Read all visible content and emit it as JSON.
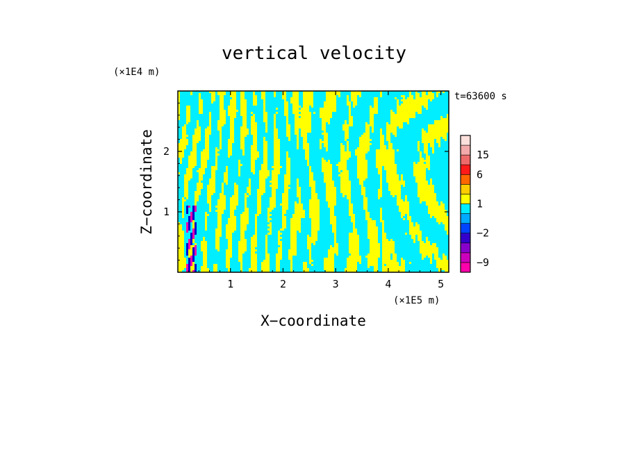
{
  "chart_data": {
    "type": "heatmap",
    "title": "vertical velocity",
    "xlabel": "X−coordinate",
    "ylabel": "Z−coordinate",
    "x_unit": "(×1E5 m)",
    "y_unit": "(×1E4 m)",
    "time_label": "t=63600 s",
    "xlim": [
      0,
      5.15
    ],
    "ylim": [
      0,
      3.0
    ],
    "x_ticks": [
      1,
      2,
      3,
      4,
      5
    ],
    "x_tick_labels": [
      "1",
      "2",
      "3",
      "4",
      "5"
    ],
    "y_ticks": [
      1,
      2
    ],
    "y_tick_labels": [
      "1",
      "2"
    ],
    "field_colors": {
      "positive": "#ffff00",
      "negative": "#00eeff",
      "strong_negative": [
        "#0000cc",
        "#6a00c8",
        "#ff00aa"
      ],
      "strong_positive": [
        "#ff2a1a",
        "#ee6a6a"
      ]
    },
    "colorbar": {
      "levels": [
        -12,
        -9,
        -6,
        -4,
        -2,
        -1,
        0,
        1,
        2,
        4,
        6,
        10,
        15,
        20,
        30
      ],
      "colors": [
        "#ff00aa",
        "#cc00bb",
        "#8800cc",
        "#3300cc",
        "#0044ff",
        "#00aaff",
        "#00eeff",
        "#ffff00",
        "#ffcc00",
        "#ff6600",
        "#ff1a1a",
        "#ee6a6a",
        "#f4aaaa",
        "#fce0dc"
      ],
      "tick_values": [
        15,
        6,
        1,
        -2,
        -9
      ],
      "tick_labels": [
        "15",
        "6",
        "1",
        "−2",
        "−9"
      ]
    }
  }
}
